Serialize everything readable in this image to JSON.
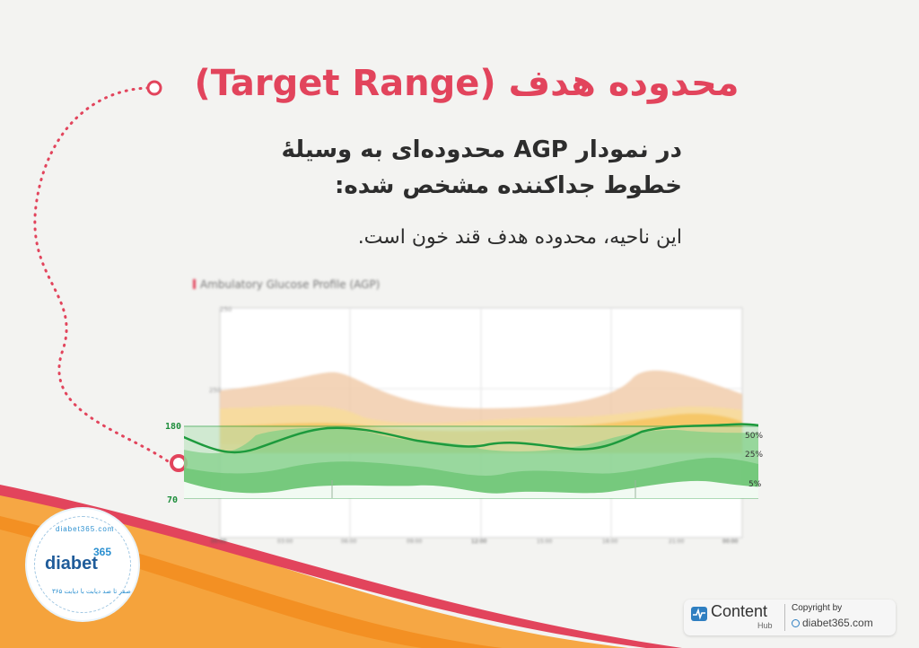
{
  "title": "محدوده هدف (Target Range)",
  "subtitle_line1": "در نمودار AGP محدوده‌ای به وسیلهٔ",
  "subtitle_line2": "خطوط جداکننده مشخص شده:",
  "description": "این ناحیه، محدوده هدف قند خون است.",
  "agp": {
    "title": "Ambulatory Glucose Profile (AGP)",
    "target_upper_label": "180",
    "target_lower_label": "70",
    "percentile_labels": [
      "50%",
      "25%",
      "5%"
    ]
  },
  "logo": {
    "name": "diabet",
    "number": "365",
    "ring_top": "diabet365.com",
    "ring_bottom": "صفر تا صد دیابت با دیابت ۳۶۵"
  },
  "footer": {
    "hub_title": "Content",
    "hub_subtitle": "Hub",
    "copyright_label": "Copyright by",
    "copyright_site": "diabet365.com"
  },
  "colors": {
    "accent": "#e2445c",
    "target_green": "#2fb24c",
    "orange": "#f39a2c"
  }
}
